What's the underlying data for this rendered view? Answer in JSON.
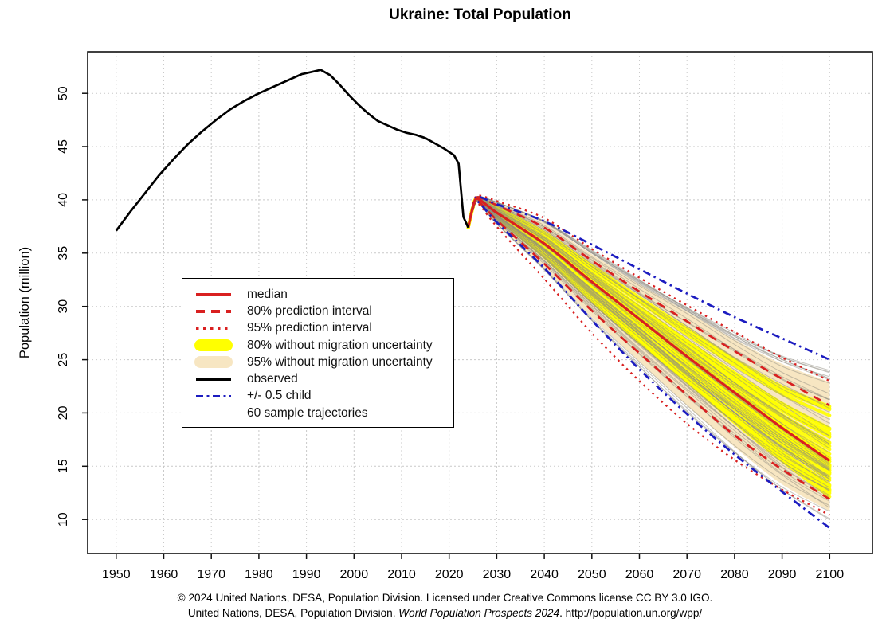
{
  "title": "Ukraine: Total Population",
  "footer": {
    "line1": "© 2024 United Nations, DESA, Population Division. Licensed under Creative Commons license CC BY 3.0 IGO.",
    "line2_prefix": "United Nations, DESA, Population Division. ",
    "line2_italic": "World Population Prospects 2024",
    "line2_suffix": ". http://population.un.org/wpp/"
  },
  "colors": {
    "median": "#d92020",
    "prediction_interval": "#d92020",
    "observed": "#000000",
    "half_child": "#1c1cc0",
    "band_80_no_migration": "#ffff00",
    "band_95_no_migration": "#f7e6c2",
    "sample_trajectory": "#8f8c80",
    "legend_thin_line": "#b5b5b5",
    "grid": "#c9c9c9",
    "axis": "#111111"
  },
  "legend": {
    "items": [
      {
        "label": "median",
        "type": "solid-line",
        "color": "#d92020"
      },
      {
        "label": "80% prediction interval",
        "type": "dashed-line",
        "color": "#d92020"
      },
      {
        "label": "95% prediction interval",
        "type": "dotted-line",
        "color": "#d92020"
      },
      {
        "label": "80% without migration uncertainty",
        "type": "band",
        "color": "#ffff00"
      },
      {
        "label": "95% without migration uncertainty",
        "type": "band",
        "color": "#f7e6c2"
      },
      {
        "label": "observed",
        "type": "solid-line",
        "color": "#000000"
      },
      {
        "label": "+/- 0.5 child",
        "type": "dashdot-line",
        "color": "#1c1cc0"
      },
      {
        "label": "60 sample trajectories",
        "type": "thin-line",
        "color": "#b5b5b5"
      }
    ]
  },
  "chart_data": {
    "type": "line",
    "title": "Ukraine: Total Population",
    "xlabel": "",
    "ylabel": "Population (million)",
    "xlim": [
      1944,
      2109
    ],
    "ylim": [
      6.8,
      53.9
    ],
    "xticks": [
      1950,
      1960,
      1970,
      1980,
      1990,
      2000,
      2010,
      2020,
      2030,
      2040,
      2050,
      2060,
      2070,
      2080,
      2090,
      2100
    ],
    "yticks": [
      10,
      15,
      20,
      25,
      30,
      35,
      40,
      45,
      50
    ],
    "grid": true,
    "legend_position": "middle-left",
    "observed": {
      "x": [
        1950,
        1953,
        1956,
        1959,
        1962,
        1965,
        1968,
        1971,
        1974,
        1977,
        1980,
        1983,
        1986,
        1989,
        1991,
        1993,
        1995,
        1997,
        1999,
        2001,
        2003,
        2005,
        2007,
        2009,
        2011,
        2013,
        2015,
        2017,
        2019,
        2021,
        2022,
        2023,
        2024
      ],
      "y": [
        37.1,
        38.9,
        40.6,
        42.3,
        43.8,
        45.2,
        46.4,
        47.5,
        48.5,
        49.3,
        50.0,
        50.6,
        51.2,
        51.8,
        52.0,
        52.2,
        51.7,
        50.8,
        49.8,
        48.9,
        48.1,
        47.4,
        47.0,
        46.6,
        46.3,
        46.1,
        45.8,
        45.3,
        44.8,
        44.2,
        43.4,
        38.4,
        37.4
      ]
    },
    "projection": {
      "years": [
        2024,
        2025,
        2026,
        2030,
        2040,
        2050,
        2060,
        2070,
        2080,
        2090,
        2100
      ],
      "median": [
        37.4,
        39.3,
        40.1,
        38.8,
        35.9,
        32.3,
        28.8,
        25.3,
        21.9,
        18.6,
        15.5
      ],
      "pi80": {
        "lower": [
          37.4,
          39.2,
          39.9,
          38.1,
          34.0,
          29.6,
          25.6,
          21.7,
          17.9,
          14.7,
          11.9
        ],
        "upper": [
          37.4,
          39.4,
          40.25,
          39.5,
          37.4,
          34.3,
          31.4,
          28.6,
          25.8,
          23.2,
          20.7
        ]
      },
      "pi95": {
        "lower": [
          37.4,
          39.1,
          39.7,
          37.5,
          32.6,
          27.5,
          23.0,
          19.0,
          15.6,
          12.8,
          10.4
        ],
        "upper": [
          37.4,
          39.5,
          40.4,
          39.9,
          38.3,
          35.4,
          32.7,
          30.1,
          27.6,
          25.2,
          23.0
        ]
      },
      "half_child": {
        "lower": [
          37.4,
          39.2,
          39.85,
          37.9,
          33.6,
          28.7,
          24.1,
          19.9,
          16.1,
          12.6,
          9.2
        ],
        "upper": [
          37.4,
          39.4,
          40.3,
          39.6,
          38.0,
          35.8,
          33.5,
          31.2,
          29.0,
          27.0,
          25.0
        ]
      },
      "no_migration_80": {
        "lower": [
          37.4,
          39.25,
          40.0,
          38.3,
          34.5,
          30.3,
          26.4,
          22.7,
          18.9,
          15.4,
          12.2
        ],
        "upper": [
          37.4,
          39.35,
          40.15,
          39.3,
          36.9,
          33.8,
          30.8,
          27.9,
          25.1,
          22.6,
          20.9
        ]
      },
      "no_migration_95": {
        "lower": [
          37.4,
          39.15,
          39.8,
          37.8,
          33.6,
          29.0,
          24.8,
          20.7,
          16.8,
          13.3,
          10.8
        ],
        "upper": [
          37.4,
          39.45,
          40.3,
          39.7,
          37.8,
          34.9,
          32.1,
          29.5,
          26.9,
          24.6,
          22.9
        ]
      },
      "sample_trajectories": 60
    }
  }
}
